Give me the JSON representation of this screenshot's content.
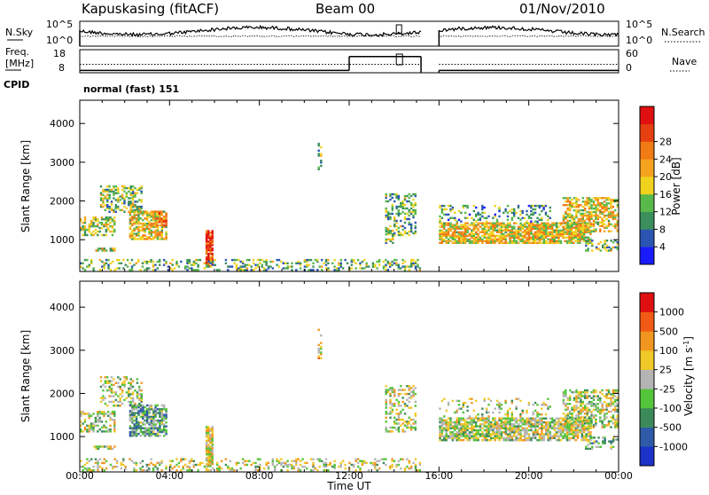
{
  "header": {
    "station": "Kapuskasing (fitACF)",
    "beam": "Beam 00",
    "date": "01/Nov/2010"
  },
  "noise_panel": {
    "left_label": "N.Sky",
    "right_label": "N.Search",
    "left_ticks": [
      "10^5",
      "10^0"
    ],
    "right_ticks": [
      "10^5",
      "10^0"
    ]
  },
  "freq_panel": {
    "left_label_1": "Freq.",
    "left_label_2": "[MHz]",
    "left_ticks": [
      "18",
      "8"
    ],
    "right_label": "Nave",
    "right_ticks": [
      "60",
      "0"
    ],
    "cpid_label": "CPID",
    "cpid_value": "normal (fast) 151",
    "freq_segments": [
      {
        "t0": 0,
        "t1": 12.0,
        "value": 9.0
      },
      {
        "t0": 12.0,
        "t1": 15.2,
        "value": 15.0
      },
      {
        "t0": 16.0,
        "t1": 24.0,
        "value": 9.0
      }
    ],
    "nave_segments": [
      {
        "t0": 0,
        "t1": 15.2,
        "value": 22
      },
      {
        "t0": 16.0,
        "t1": 24.0,
        "value": 22
      }
    ]
  },
  "chart_data": [
    {
      "type": "heatmap",
      "name": "power",
      "ylabel": "Slant Range [km]",
      "xlabel": "Time UT",
      "xlim": [
        0,
        24
      ],
      "ylim": [
        180,
        4600
      ],
      "x_ticks": [
        "00:00",
        "04:00",
        "08:00",
        "12:00",
        "16:00",
        "20:00",
        "00:00"
      ],
      "y_ticks": [
        1000,
        2000,
        3000,
        4000
      ],
      "colorbar": {
        "label": "Power [dB]",
        "ticks": [
          "4",
          "8",
          "12",
          "16",
          "20",
          "24",
          "28"
        ],
        "colors": [
          "#1a1aff",
          "#2b55b3",
          "#3a8f5c",
          "#59b84a",
          "#f0d21e",
          "#f5a31e",
          "#f07a14",
          "#e64010",
          "#e01010"
        ]
      },
      "scatter_regions": [
        {
          "t0": 0.0,
          "t1": 1.6,
          "r0": 1100,
          "r1": 1600,
          "level": 0.45,
          "density": 0.55
        },
        {
          "t0": 0.6,
          "t1": 1.6,
          "r0": 700,
          "r1": 800,
          "level": 0.5,
          "density": 0.7
        },
        {
          "t0": 0.9,
          "t1": 2.8,
          "r0": 1700,
          "r1": 2400,
          "level": 0.4,
          "density": 0.45
        },
        {
          "t0": 2.2,
          "t1": 3.9,
          "r0": 1000,
          "r1": 1750,
          "level": 0.55,
          "density": 0.7
        },
        {
          "t0": 3.4,
          "t1": 3.9,
          "r0": 1350,
          "r1": 1700,
          "level": 0.7,
          "density": 0.6
        },
        {
          "t0": 5.6,
          "t1": 5.95,
          "r0": 300,
          "r1": 1250,
          "level": 0.85,
          "density": 0.85
        },
        {
          "t0": 0.0,
          "t1": 15.2,
          "r0": 200,
          "r1": 500,
          "level": 0.35,
          "density": 0.3
        },
        {
          "t0": 10.6,
          "t1": 10.8,
          "r0": 2800,
          "r1": 3500,
          "level": 0.4,
          "density": 0.3
        },
        {
          "t0": 13.6,
          "t1": 15.0,
          "r0": 1100,
          "r1": 2200,
          "level": 0.35,
          "density": 0.35
        },
        {
          "t0": 13.6,
          "t1": 14.0,
          "r0": 900,
          "r1": 1300,
          "level": 0.4,
          "density": 0.5
        },
        {
          "t0": 16.0,
          "t1": 22.8,
          "r0": 900,
          "r1": 1450,
          "level": 0.55,
          "density": 0.8
        },
        {
          "t0": 16.0,
          "t1": 21.0,
          "r0": 1450,
          "r1": 1900,
          "level": 0.3,
          "density": 0.25
        },
        {
          "t0": 21.5,
          "t1": 24.0,
          "r0": 1200,
          "r1": 2100,
          "level": 0.55,
          "density": 0.6
        },
        {
          "t0": 22.5,
          "t1": 24.0,
          "r0": 700,
          "r1": 1000,
          "level": 0.35,
          "density": 0.35
        }
      ]
    },
    {
      "type": "heatmap",
      "name": "velocity",
      "ylabel": "Slant Range [km]",
      "xlabel": "Time UT",
      "xlim": [
        0,
        24
      ],
      "ylim": [
        180,
        4600
      ],
      "x_ticks": [
        "00:00",
        "04:00",
        "08:00",
        "12:00",
        "16:00",
        "20:00",
        "00:00"
      ],
      "y_ticks": [
        1000,
        2000,
        3000,
        4000
      ],
      "colorbar": {
        "label": "Velocity [m s^-1]",
        "ticks": [
          "1000",
          "500",
          "100",
          "25",
          "-25",
          "-100",
          "-500",
          "-1000"
        ],
        "colors": [
          "#1a32c8",
          "#2e5aa8",
          "#3c8a5a",
          "#54c43a",
          "#b4b4b4",
          "#f0c828",
          "#f09620",
          "#f05a14",
          "#e01010"
        ]
      },
      "scatter_regions": [
        {
          "t0": 0.0,
          "t1": 1.6,
          "r0": 1100,
          "r1": 1600,
          "level": 0.5,
          "density": 0.55
        },
        {
          "t0": 0.6,
          "t1": 1.6,
          "r0": 700,
          "r1": 800,
          "level": 0.5,
          "density": 0.7
        },
        {
          "t0": 0.9,
          "t1": 2.8,
          "r0": 1700,
          "r1": 2400,
          "level": 0.5,
          "density": 0.4
        },
        {
          "t0": 2.2,
          "t1": 3.9,
          "r0": 1000,
          "r1": 1750,
          "level": 0.35,
          "density": 0.75
        },
        {
          "t0": 5.6,
          "t1": 5.95,
          "r0": 300,
          "r1": 1250,
          "level": 0.55,
          "density": 0.85
        },
        {
          "t0": 0.0,
          "t1": 15.2,
          "r0": 200,
          "r1": 500,
          "level": 0.52,
          "density": 0.3
        },
        {
          "t0": 10.6,
          "t1": 10.8,
          "r0": 2800,
          "r1": 3500,
          "level": 0.6,
          "density": 0.3
        },
        {
          "t0": 13.6,
          "t1": 15.0,
          "r0": 1100,
          "r1": 2200,
          "level": 0.5,
          "density": 0.35
        },
        {
          "t0": 16.0,
          "t1": 22.8,
          "r0": 900,
          "r1": 1450,
          "level": 0.5,
          "density": 0.8
        },
        {
          "t0": 16.0,
          "t1": 21.0,
          "r0": 1450,
          "r1": 1900,
          "level": 0.5,
          "density": 0.2
        },
        {
          "t0": 21.5,
          "t1": 24.0,
          "r0": 1200,
          "r1": 2100,
          "level": 0.5,
          "density": 0.55
        },
        {
          "t0": 22.5,
          "t1": 24.0,
          "r0": 700,
          "r1": 1000,
          "level": 0.4,
          "density": 0.35
        }
      ]
    }
  ]
}
